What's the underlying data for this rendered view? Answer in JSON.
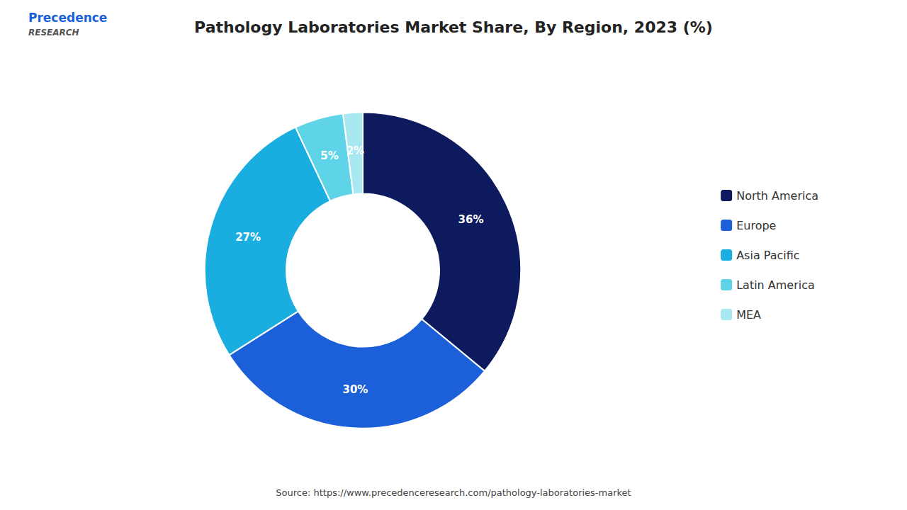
{
  "chart_data": {
    "type": "pie",
    "title": "Pathology Laboratories Market Share, By Region, 2023 (%)",
    "categories": [
      "North America",
      "Europe",
      "Asia Pacific",
      "Latin America",
      "MEA"
    ],
    "values": [
      36,
      30,
      27,
      5,
      2
    ],
    "value_labels": [
      "36%",
      "30%",
      "27%",
      "5%",
      "2%"
    ],
    "colors": [
      "#0d1b5e",
      "#1b5fd9",
      "#1aaee0",
      "#5fd4e8",
      "#a8e8f0"
    ],
    "data_labels": true,
    "legend": "right",
    "annotations": [
      "Source: https://www.precedenceresearch.com/pathology-laboratories-market",
      "Precedence",
      "RESEARCH"
    ]
  }
}
